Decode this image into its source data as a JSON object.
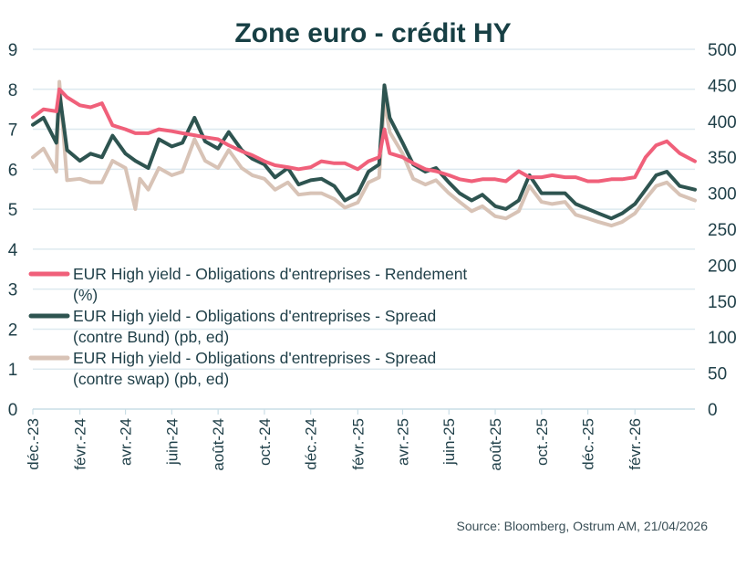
{
  "chart_data": {
    "type": "line",
    "title": "Zone euro - crédit HY",
    "source": "Source: Bloomberg,  Ostrum AM, 21/04/2026",
    "x_range": [
      "2023-12-01",
      "2026-04-21"
    ],
    "x_tick_labels": [
      "déc.-23",
      "févr.-24",
      "avr.-24",
      "juin-24",
      "août-24",
      "oct.-24",
      "déc.-24",
      "févr.-25",
      "avr.-25",
      "juin-25",
      "août-25",
      "oct.-25",
      "déc.-25",
      "févr.-26"
    ],
    "y_left": {
      "range": [
        0,
        9
      ],
      "ticks": [
        "0",
        "1",
        "2",
        "3",
        "4",
        "5",
        "6",
        "7",
        "8",
        "9"
      ]
    },
    "y_right": {
      "range": [
        0,
        500
      ],
      "ticks": [
        "0",
        "50",
        "100",
        "150",
        "200",
        "250",
        "300",
        "350",
        "400",
        "450",
        "500"
      ]
    },
    "grid": true,
    "legend_position": "left-middle",
    "series": [
      {
        "name_lines": [
          "EUR High yield - Obligations d'entreprises - Rendement",
          "(%)"
        ],
        "axis": "left",
        "color": "#f0607a",
        "points": [
          [
            "2023-12-01",
            7.3
          ],
          [
            "2023-12-15",
            7.5
          ],
          [
            "2024-01-01",
            7.45
          ],
          [
            "2024-01-05",
            8.0
          ],
          [
            "2024-01-15",
            7.8
          ],
          [
            "2024-02-01",
            7.6
          ],
          [
            "2024-02-15",
            7.55
          ],
          [
            "2024-03-01",
            7.65
          ],
          [
            "2024-03-15",
            7.1
          ],
          [
            "2024-04-01",
            7.0
          ],
          [
            "2024-04-14",
            6.9
          ],
          [
            "2024-05-01",
            6.9
          ],
          [
            "2024-05-15",
            7.0
          ],
          [
            "2024-06-01",
            6.95
          ],
          [
            "2024-06-15",
            6.9
          ],
          [
            "2024-07-01",
            6.85
          ],
          [
            "2024-07-15",
            6.8
          ],
          [
            "2024-08-01",
            6.75
          ],
          [
            "2024-08-15",
            6.6
          ],
          [
            "2024-09-01",
            6.45
          ],
          [
            "2024-09-15",
            6.35
          ],
          [
            "2024-10-01",
            6.2
          ],
          [
            "2024-10-15",
            6.1
          ],
          [
            "2024-11-01",
            6.05
          ],
          [
            "2024-11-15",
            6.0
          ],
          [
            "2024-12-01",
            6.05
          ],
          [
            "2024-12-15",
            6.2
          ],
          [
            "2025-01-01",
            6.15
          ],
          [
            "2025-01-15",
            6.15
          ],
          [
            "2025-02-01",
            6.0
          ],
          [
            "2025-02-15",
            6.2
          ],
          [
            "2025-03-01",
            6.3
          ],
          [
            "2025-03-08",
            7.0
          ],
          [
            "2025-03-15",
            6.4
          ],
          [
            "2025-04-01",
            6.3
          ],
          [
            "2025-04-15",
            6.15
          ],
          [
            "2025-05-01",
            6.0
          ],
          [
            "2025-05-15",
            5.95
          ],
          [
            "2025-06-01",
            5.85
          ],
          [
            "2025-06-15",
            5.75
          ],
          [
            "2025-07-01",
            5.7
          ],
          [
            "2025-07-15",
            5.75
          ],
          [
            "2025-08-01",
            5.75
          ],
          [
            "2025-08-15",
            5.7
          ],
          [
            "2025-09-01",
            5.95
          ],
          [
            "2025-09-15",
            5.8
          ],
          [
            "2025-10-01",
            5.8
          ],
          [
            "2025-10-15",
            5.85
          ],
          [
            "2025-11-01",
            5.8
          ],
          [
            "2025-11-15",
            5.8
          ],
          [
            "2025-12-01",
            5.7
          ],
          [
            "2025-12-15",
            5.7
          ],
          [
            "2026-01-01",
            5.75
          ],
          [
            "2026-01-15",
            5.75
          ],
          [
            "2026-02-01",
            5.8
          ],
          [
            "2026-02-15",
            6.3
          ],
          [
            "2026-03-01",
            6.6
          ],
          [
            "2026-03-15",
            6.7
          ],
          [
            "2026-04-01",
            6.4
          ],
          [
            "2026-04-21",
            6.2
          ]
        ]
      },
      {
        "name_lines": [
          "EUR High yield - Obligations d'entreprises - Spread",
          "(contre Bund)  (pb, ed)"
        ],
        "axis": "right",
        "color": "#2e5450",
        "points": [
          [
            "2023-12-01",
            395
          ],
          [
            "2023-12-15",
            405
          ],
          [
            "2024-01-01",
            370
          ],
          [
            "2024-01-05",
            440
          ],
          [
            "2024-01-15",
            360
          ],
          [
            "2024-02-01",
            345
          ],
          [
            "2024-02-15",
            355
          ],
          [
            "2024-03-01",
            350
          ],
          [
            "2024-03-15",
            380
          ],
          [
            "2024-04-01",
            355
          ],
          [
            "2024-04-14",
            345
          ],
          [
            "2024-05-01",
            335
          ],
          [
            "2024-05-15",
            375
          ],
          [
            "2024-06-01",
            365
          ],
          [
            "2024-06-15",
            370
          ],
          [
            "2024-07-01",
            405
          ],
          [
            "2024-07-15",
            372
          ],
          [
            "2024-08-01",
            362
          ],
          [
            "2024-08-15",
            385
          ],
          [
            "2024-09-01",
            360
          ],
          [
            "2024-09-15",
            348
          ],
          [
            "2024-10-01",
            340
          ],
          [
            "2024-10-15",
            322
          ],
          [
            "2024-11-01",
            335
          ],
          [
            "2024-11-15",
            312
          ],
          [
            "2024-12-01",
            318
          ],
          [
            "2024-12-15",
            320
          ],
          [
            "2025-01-01",
            310
          ],
          [
            "2025-01-15",
            290
          ],
          [
            "2025-02-01",
            300
          ],
          [
            "2025-02-15",
            330
          ],
          [
            "2025-03-01",
            340
          ],
          [
            "2025-03-08",
            450
          ],
          [
            "2025-03-15",
            405
          ],
          [
            "2025-04-01",
            370
          ],
          [
            "2025-04-15",
            340
          ],
          [
            "2025-05-01",
            330
          ],
          [
            "2025-05-15",
            335
          ],
          [
            "2025-06-01",
            315
          ],
          [
            "2025-06-15",
            300
          ],
          [
            "2025-07-01",
            290
          ],
          [
            "2025-07-15",
            298
          ],
          [
            "2025-08-01",
            282
          ],
          [
            "2025-08-15",
            278
          ],
          [
            "2025-09-01",
            290
          ],
          [
            "2025-09-15",
            325
          ],
          [
            "2025-10-01",
            300
          ],
          [
            "2025-10-15",
            300
          ],
          [
            "2025-11-01",
            300
          ],
          [
            "2025-11-15",
            285
          ],
          [
            "2025-12-01",
            278
          ],
          [
            "2025-12-15",
            272
          ],
          [
            "2026-01-01",
            265
          ],
          [
            "2026-01-15",
            272
          ],
          [
            "2026-02-01",
            285
          ],
          [
            "2026-02-15",
            305
          ],
          [
            "2026-03-01",
            325
          ],
          [
            "2026-03-15",
            330
          ],
          [
            "2026-04-01",
            310
          ],
          [
            "2026-04-21",
            305
          ]
        ]
      },
      {
        "name_lines": [
          "EUR High yield - Obligations d'entreprises - Spread",
          "(contre swap)  (pb, ed)"
        ],
        "axis": "right",
        "color": "#d8c3b6",
        "points": [
          [
            "2023-12-01",
            350
          ],
          [
            "2023-12-15",
            362
          ],
          [
            "2024-01-01",
            330
          ],
          [
            "2024-01-05",
            455
          ],
          [
            "2024-01-15",
            318
          ],
          [
            "2024-02-01",
            320
          ],
          [
            "2024-02-15",
            315
          ],
          [
            "2024-03-01",
            315
          ],
          [
            "2024-03-15",
            345
          ],
          [
            "2024-04-01",
            335
          ],
          [
            "2024-04-14",
            278
          ],
          [
            "2024-04-20",
            320
          ],
          [
            "2024-05-01",
            305
          ],
          [
            "2024-05-15",
            335
          ],
          [
            "2024-06-01",
            325
          ],
          [
            "2024-06-15",
            330
          ],
          [
            "2024-07-01",
            375
          ],
          [
            "2024-07-15",
            345
          ],
          [
            "2024-08-01",
            335
          ],
          [
            "2024-08-15",
            360
          ],
          [
            "2024-09-01",
            335
          ],
          [
            "2024-09-15",
            325
          ],
          [
            "2024-10-01",
            320
          ],
          [
            "2024-10-15",
            305
          ],
          [
            "2024-11-01",
            315
          ],
          [
            "2024-11-15",
            298
          ],
          [
            "2024-12-01",
            300
          ],
          [
            "2024-12-15",
            300
          ],
          [
            "2025-01-01",
            292
          ],
          [
            "2025-01-15",
            280
          ],
          [
            "2025-02-01",
            287
          ],
          [
            "2025-02-15",
            315
          ],
          [
            "2025-03-01",
            322
          ],
          [
            "2025-03-08",
            430
          ],
          [
            "2025-03-15",
            385
          ],
          [
            "2025-04-01",
            355
          ],
          [
            "2025-04-15",
            320
          ],
          [
            "2025-05-01",
            312
          ],
          [
            "2025-05-15",
            318
          ],
          [
            "2025-06-01",
            300
          ],
          [
            "2025-06-15",
            288
          ],
          [
            "2025-07-01",
            275
          ],
          [
            "2025-07-15",
            282
          ],
          [
            "2025-08-01",
            268
          ],
          [
            "2025-08-15",
            265
          ],
          [
            "2025-09-01",
            275
          ],
          [
            "2025-09-15",
            310
          ],
          [
            "2025-10-01",
            288
          ],
          [
            "2025-10-15",
            285
          ],
          [
            "2025-11-01",
            288
          ],
          [
            "2025-11-15",
            270
          ],
          [
            "2025-12-01",
            265
          ],
          [
            "2025-12-15",
            260
          ],
          [
            "2026-01-01",
            255
          ],
          [
            "2026-01-15",
            260
          ],
          [
            "2026-02-01",
            272
          ],
          [
            "2026-02-15",
            292
          ],
          [
            "2026-03-01",
            310
          ],
          [
            "2026-03-15",
            315
          ],
          [
            "2026-04-01",
            298
          ],
          [
            "2026-04-21",
            290
          ]
        ]
      }
    ]
  }
}
